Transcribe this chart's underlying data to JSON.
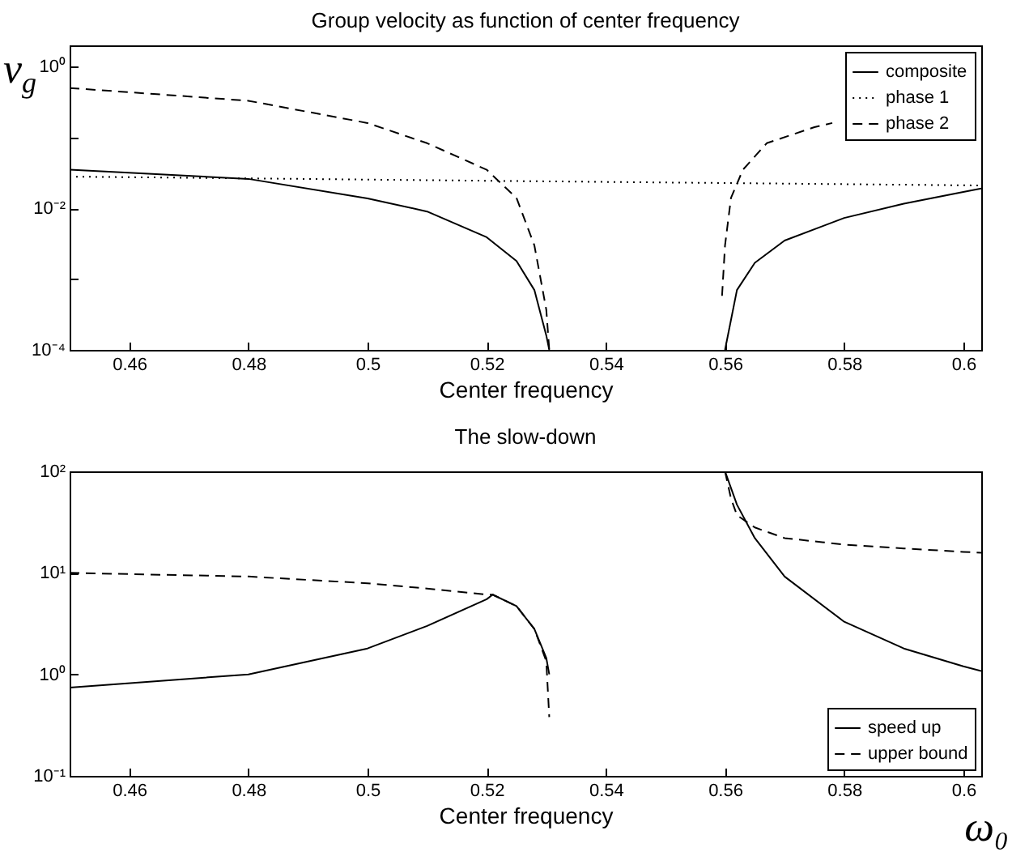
{
  "chart_data": [
    {
      "type": "line",
      "title": "Group velocity as function of center frequency",
      "xlabel": "Center frequency",
      "ylabel": "v$_{g}$",
      "log": "y",
      "legend": "top right",
      "grid": false,
      "xlim": [
        0.45,
        0.603
      ],
      "xticks": [
        0.46,
        0.48,
        0.5,
        0.52,
        0.54,
        0.56,
        0.58,
        0.6
      ],
      "ylim": [
        0.0001,
        2
      ],
      "yticks": [
        {
          "value": 0.0001,
          "label": "10⁻⁴"
        },
        {
          "value": 0.001,
          "label": null
        },
        {
          "value": 0.01,
          "label": "10⁻²"
        },
        {
          "value": 0.1,
          "label": null
        },
        {
          "value": 1,
          "label": "10⁰"
        }
      ],
      "series": [
        {
          "name": "composite",
          "color": "#000000",
          "line_style": "solid",
          "x": [
            0.45,
            0.48,
            0.5,
            0.51,
            0.52,
            0.525,
            0.528,
            0.53,
            0.5305,
            0.545,
            0.56,
            0.562,
            0.565,
            0.57,
            0.58,
            0.59,
            0.6,
            0.603
          ],
          "values": [
            0.035,
            0.026,
            0.0138,
            0.009,
            0.0039,
            0.0018,
            0.0007,
            0.00016,
            0.0001,
            null,
            0.0001,
            0.0007,
            0.0017,
            0.0035,
            0.0073,
            0.0116,
            0.017,
            0.019
          ]
        },
        {
          "name": "phase 1",
          "color": "#000000",
          "line_style": "dotted",
          "x": [
            0.45,
            0.53,
            0.603
          ],
          "values": [
            0.028,
            0.024,
            0.021
          ]
        },
        {
          "name": "phase 2",
          "color": "#000000",
          "line_style": "dashed",
          "x": [
            0.45,
            0.48,
            0.5,
            0.51,
            0.52,
            0.525,
            0.528,
            0.53,
            0.5305,
            0.545,
            0.5595,
            0.56,
            0.561,
            0.563,
            0.567,
            0.575,
            0.578
          ],
          "values": [
            0.5,
            0.33,
            0.16,
            0.083,
            0.035,
            0.014,
            0.003,
            0.00037,
            0.0001,
            null,
            0.00058,
            0.003,
            0.014,
            0.035,
            0.083,
            0.14,
            0.16
          ]
        }
      ]
    },
    {
      "type": "line",
      "title": "The slow-down",
      "xlabel": "Center frequency",
      "log": "y",
      "legend": "bottom right",
      "grid": false,
      "annotations": [
        "ω₀"
      ],
      "xlim": [
        0.45,
        0.603
      ],
      "xticks": [
        0.46,
        0.48,
        0.5,
        0.52,
        0.54,
        0.56,
        0.58,
        0.6
      ],
      "ylim": [
        0.1,
        100
      ],
      "yticks": [
        {
          "value": 0.1,
          "label": "10⁻¹"
        },
        {
          "value": 1,
          "label": "10⁰"
        },
        {
          "value": 10,
          "label": "10¹"
        },
        {
          "value": 100,
          "label": "10²"
        }
      ],
      "series": [
        {
          "name": "speed  up",
          "color": "#000000",
          "line_style": "solid",
          "x": [
            0.45,
            0.48,
            0.5,
            0.51,
            0.52,
            0.521,
            0.525,
            0.528,
            0.53,
            0.5305,
            0.545,
            0.56,
            0.562,
            0.565,
            0.57,
            0.58,
            0.59,
            0.6,
            0.603
          ],
          "values": [
            0.74,
            1.0,
            1.8,
            3.0,
            5.5,
            6.1,
            4.7,
            2.8,
            1.45,
            1.0,
            null,
            100,
            47,
            22,
            9.2,
            3.3,
            1.8,
            1.2,
            1.08
          ]
        },
        {
          "name": "upper bound",
          "color": "#000000",
          "line_style": "dashed",
          "x": [
            0.45,
            0.48,
            0.5,
            0.51,
            0.52,
            0.521,
            0.525,
            0.528,
            0.53,
            0.5305,
            0.545,
            0.56,
            0.561,
            0.562,
            0.565,
            0.57,
            0.58,
            0.59,
            0.6,
            0.603
          ],
          "values": [
            10,
            9.2,
            7.9,
            7.0,
            6.1,
            6.1,
            4.7,
            2.8,
            1.35,
            0.38,
            null,
            100,
            54,
            37,
            28,
            22,
            19,
            17.4,
            16.1,
            15.8
          ]
        }
      ]
    }
  ]
}
